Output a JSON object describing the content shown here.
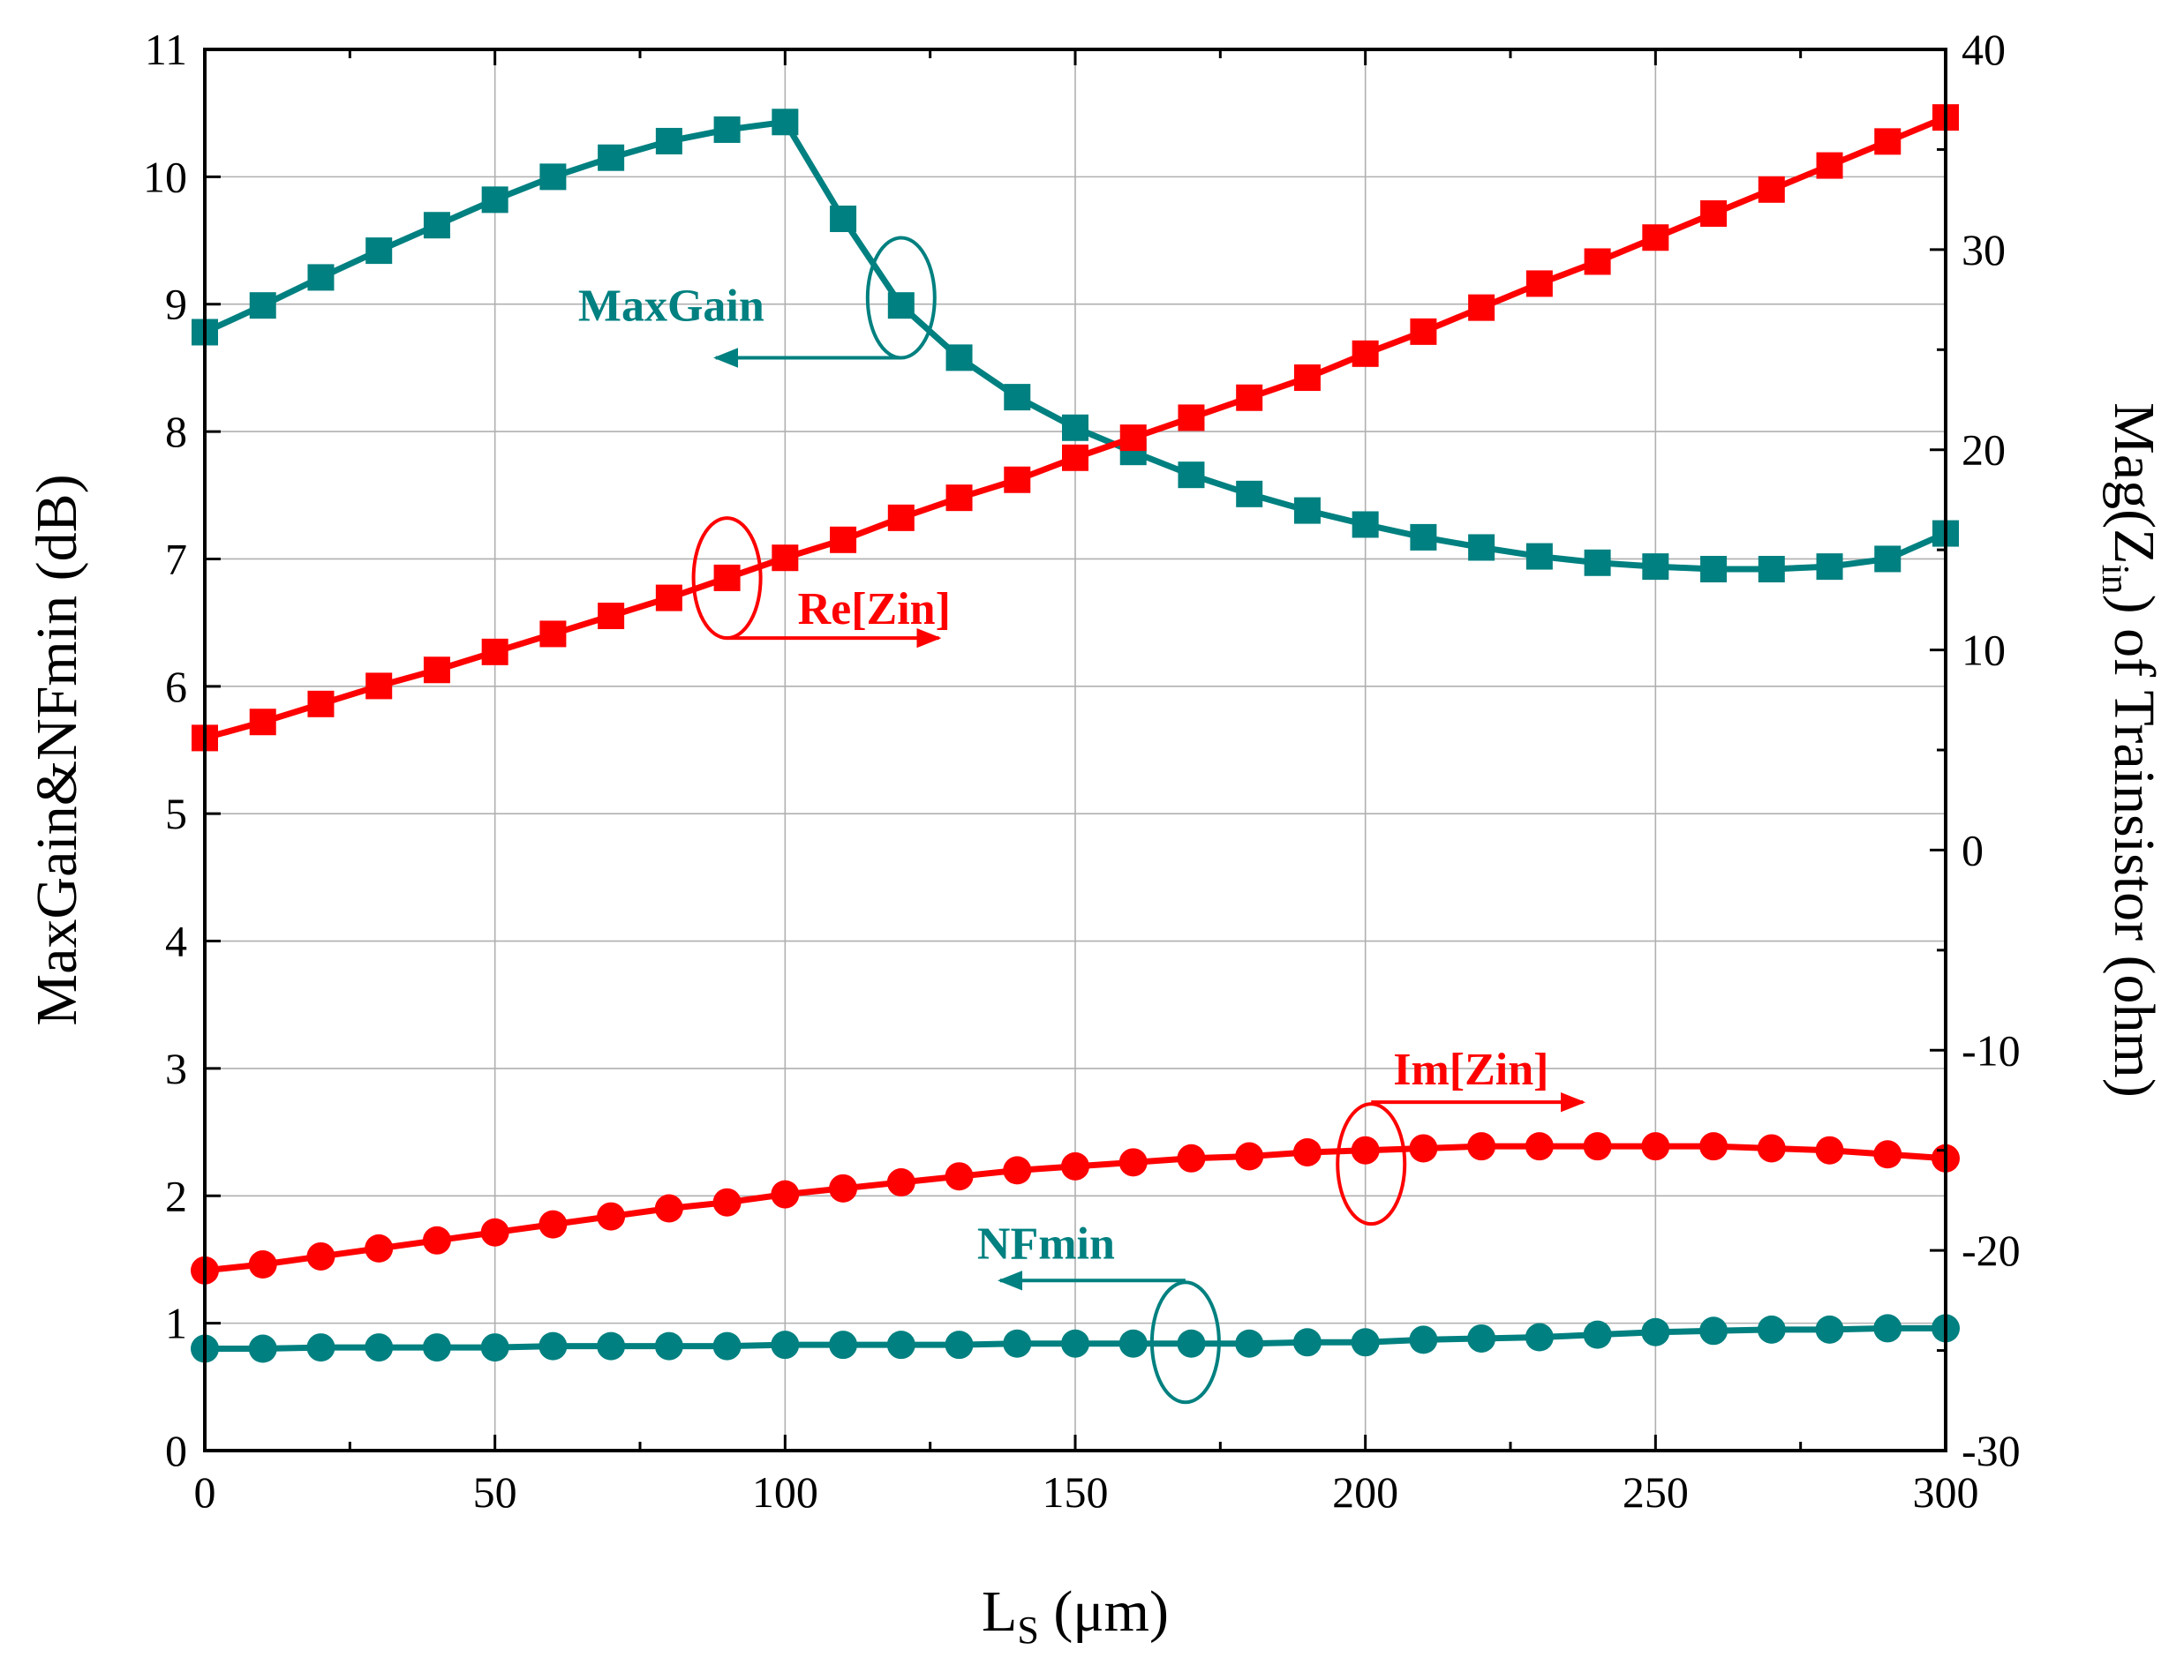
{
  "chart_data": {
    "type": "line",
    "x": [
      0,
      10,
      20,
      30,
      40,
      50,
      60,
      70,
      80,
      90,
      100,
      110,
      120,
      130,
      140,
      150,
      160,
      170,
      180,
      190,
      200,
      210,
      220,
      230,
      240,
      250,
      260,
      270,
      280,
      290,
      300
    ],
    "xlim": [
      0,
      300
    ],
    "xticks": [
      0,
      50,
      100,
      150,
      200,
      250,
      300
    ],
    "xlabel": {
      "main": "L",
      "sub": "S",
      "unit": " (μm)"
    },
    "y_left": {
      "label": "MaxGain&NFmin (dB)",
      "lim": [
        0,
        11
      ],
      "ticks": [
        0,
        1,
        2,
        3,
        4,
        5,
        6,
        7,
        8,
        9,
        10,
        11
      ]
    },
    "y_right": {
      "label_pre": "Mag(Z",
      "label_sub": "in",
      "label_post": ") of Trainsistor (ohm)",
      "lim": [
        -30,
        40
      ],
      "ticks": [
        -30,
        -20,
        -10,
        0,
        10,
        20,
        30,
        40
      ]
    },
    "grid": true,
    "series": [
      {
        "name": "MaxGain",
        "axis": "left",
        "marker": "square",
        "color": "#008080",
        "values": [
          8.78,
          8.99,
          9.21,
          9.42,
          9.62,
          9.82,
          10.0,
          10.15,
          10.28,
          10.37,
          10.43,
          9.67,
          8.99,
          8.58,
          8.27,
          8.03,
          7.84,
          7.66,
          7.51,
          7.38,
          7.27,
          7.17,
          7.09,
          7.02,
          6.97,
          6.94,
          6.92,
          6.92,
          6.94,
          7.0,
          7.2
        ]
      },
      {
        "name": "NFmin",
        "axis": "left",
        "marker": "circle",
        "color": "#008080",
        "values": [
          0.8,
          0.8,
          0.81,
          0.81,
          0.81,
          0.81,
          0.82,
          0.82,
          0.82,
          0.82,
          0.83,
          0.83,
          0.83,
          0.83,
          0.84,
          0.84,
          0.84,
          0.84,
          0.84,
          0.85,
          0.85,
          0.87,
          0.88,
          0.89,
          0.91,
          0.93,
          0.94,
          0.95,
          0.95,
          0.96,
          0.96
        ]
      },
      {
        "name": "Re[Zin]",
        "axis": "right",
        "marker": "square",
        "color": "#ff0000",
        "values": [
          5.6,
          6.4,
          7.3,
          8.2,
          9.0,
          9.9,
          10.8,
          11.7,
          12.6,
          13.6,
          14.6,
          15.5,
          16.6,
          17.6,
          18.5,
          19.6,
          20.6,
          21.6,
          22.6,
          23.6,
          24.8,
          25.9,
          27.1,
          28.3,
          29.4,
          30.6,
          31.8,
          33.0,
          34.2,
          35.4,
          36.6
        ]
      },
      {
        "name": "Im[Zin]",
        "axis": "right",
        "marker": "circle",
        "color": "#ff0000",
        "values": [
          -21.0,
          -20.7,
          -20.3,
          -19.9,
          -19.5,
          -19.1,
          -18.7,
          -18.3,
          -17.9,
          -17.6,
          -17.2,
          -16.9,
          -16.6,
          -16.3,
          -16.0,
          -15.8,
          -15.6,
          -15.4,
          -15.3,
          -15.1,
          -15.0,
          -14.9,
          -14.8,
          -14.8,
          -14.8,
          -14.8,
          -14.8,
          -14.9,
          -15.0,
          -15.2,
          -15.4
        ]
      }
    ],
    "annotations": [
      {
        "text": "MaxGain",
        "color": "#008080",
        "ellipse_at": [
          120,
          9.05
        ],
        "arrow": "left"
      },
      {
        "text": "Re[Zin]",
        "color": "#ff0000",
        "ellipse_at": [
          90,
          6.85
        ],
        "arrow": "right"
      },
      {
        "text": "Im[Zin]",
        "color": "#ff0000",
        "ellipse_at": [
          201,
          2.25
        ],
        "arrow": "right"
      },
      {
        "text": "NFmin",
        "color": "#008080",
        "ellipse_at": [
          169,
          0.85
        ],
        "arrow": "left"
      }
    ]
  }
}
